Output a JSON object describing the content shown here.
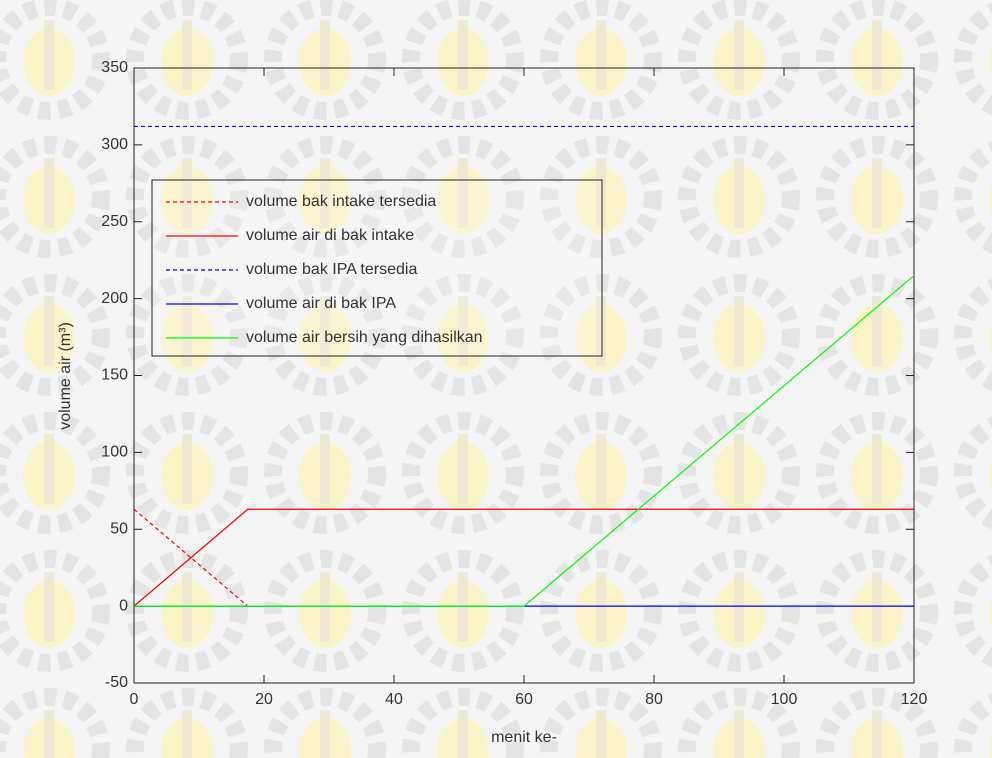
{
  "chart_data": {
    "type": "line",
    "xlabel": "menit ke-",
    "ylabel": "volume air (m³)",
    "xlim": [
      0,
      120
    ],
    "xticks": [
      0,
      20,
      40,
      60,
      80,
      100,
      120
    ],
    "ylim": [
      -50,
      350
    ],
    "yticks": [
      -50,
      0,
      50,
      100,
      150,
      200,
      250,
      300,
      350
    ],
    "legend": "upper left",
    "series": [
      {
        "name": "volume bak intake tersedia",
        "color": "#ff0000",
        "dashed": true,
        "x": [
          0,
          17.5
        ],
        "values": [
          63,
          0
        ]
      },
      {
        "name": "volume air di bak intake",
        "color": "#ff0000",
        "dashed": false,
        "x": [
          0,
          17.5,
          120
        ],
        "values": [
          0,
          63,
          63
        ]
      },
      {
        "name": "volume bak IPA tersedia",
        "color": "#0000ff",
        "dashed": true,
        "x": [
          0,
          120
        ],
        "values": [
          312,
          312
        ]
      },
      {
        "name": "volume air di bak IPA",
        "color": "#0000ff",
        "dashed": false,
        "x": [
          0,
          120
        ],
        "values": [
          0,
          0
        ]
      },
      {
        "name": "volume air bersih yang dihasilkan",
        "color": "#00ff00",
        "dashed": false,
        "x": [
          0,
          60,
          120
        ],
        "values": [
          0,
          0,
          215
        ]
      }
    ]
  }
}
